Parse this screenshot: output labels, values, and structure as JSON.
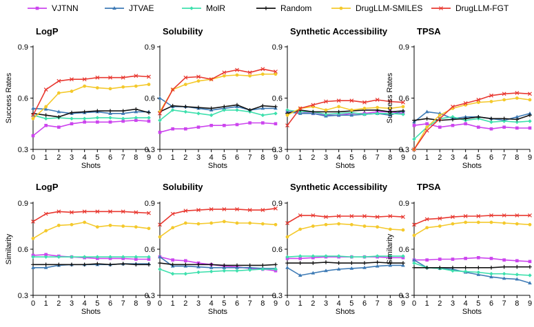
{
  "legend": [
    {
      "name": "VJTNN",
      "color": "#cc44ee",
      "marker": "square"
    },
    {
      "name": "JTVAE",
      "color": "#3d7ab5",
      "marker": "triangle"
    },
    {
      "name": "MolR",
      "color": "#3ee0ad",
      "marker": "diamond"
    },
    {
      "name": "Random",
      "color": "#111111",
      "marker": "plus"
    },
    {
      "name": "DrugLLM-SMILES",
      "color": "#f4c92c",
      "marker": "circle"
    },
    {
      "name": "DrugLLM-FGT",
      "color": "#e8372f",
      "marker": "x"
    }
  ],
  "chart_data": [
    {
      "type": "line",
      "title": "LogP",
      "xlabel": "Shots",
      "ylabel": "Success Rates",
      "x": [
        0,
        1,
        2,
        3,
        4,
        5,
        6,
        7,
        8,
        9
      ],
      "ylim": [
        0.3,
        0.9
      ],
      "yticks": [
        "0.3",
        "0.6",
        "0.9"
      ],
      "series": [
        {
          "name": "VJTNN",
          "values": [
            0.38,
            0.44,
            0.43,
            0.45,
            0.46,
            0.46,
            0.46,
            0.465,
            0.47,
            0.465
          ]
        },
        {
          "name": "JTVAE",
          "values": [
            0.54,
            0.535,
            0.52,
            0.51,
            0.515,
            0.52,
            0.51,
            0.51,
            0.52,
            0.52
          ]
        },
        {
          "name": "MolR",
          "values": [
            0.5,
            0.48,
            0.485,
            0.48,
            0.48,
            0.485,
            0.485,
            0.48,
            0.485,
            0.485
          ]
        },
        {
          "name": "Random",
          "values": [
            0.51,
            0.5,
            0.49,
            0.515,
            0.52,
            0.525,
            0.525,
            0.525,
            0.535,
            0.515
          ]
        },
        {
          "name": "DrugLLM-SMILES",
          "values": [
            0.48,
            0.55,
            0.63,
            0.64,
            0.67,
            0.66,
            0.655,
            0.665,
            0.67,
            0.68
          ]
        },
        {
          "name": "DrugLLM-FGT",
          "values": [
            0.5,
            0.65,
            0.7,
            0.71,
            0.71,
            0.72,
            0.72,
            0.72,
            0.73,
            0.725
          ]
        }
      ]
    },
    {
      "type": "line",
      "title": "Solubility",
      "xlabel": "Shots",
      "ylabel": "",
      "x": [
        0,
        1,
        2,
        3,
        4,
        5,
        6,
        7,
        8,
        9
      ],
      "ylim": [
        0.3,
        0.9
      ],
      "yticks": [
        "0.3",
        "0.6",
        "0.9"
      ],
      "series": [
        {
          "name": "VJTNN",
          "values": [
            0.4,
            0.42,
            0.42,
            0.43,
            0.44,
            0.44,
            0.445,
            0.455,
            0.455,
            0.45
          ]
        },
        {
          "name": "JTVAE",
          "values": [
            0.6,
            0.55,
            0.55,
            0.54,
            0.53,
            0.54,
            0.55,
            0.53,
            0.54,
            0.54
          ]
        },
        {
          "name": "MolR",
          "values": [
            0.47,
            0.53,
            0.52,
            0.51,
            0.5,
            0.53,
            0.53,
            0.52,
            0.5,
            0.51
          ]
        },
        {
          "name": "Random",
          "values": [
            0.52,
            0.555,
            0.55,
            0.545,
            0.54,
            0.55,
            0.56,
            0.53,
            0.555,
            0.55
          ]
        },
        {
          "name": "DrugLLM-SMILES",
          "values": [
            0.52,
            0.65,
            0.68,
            0.7,
            0.71,
            0.73,
            0.735,
            0.73,
            0.74,
            0.74
          ]
        },
        {
          "name": "DrugLLM-FGT",
          "values": [
            0.51,
            0.65,
            0.72,
            0.725,
            0.71,
            0.75,
            0.765,
            0.75,
            0.77,
            0.755
          ]
        }
      ]
    },
    {
      "type": "line",
      "title": "Synthetic Accessibility",
      "xlabel": "Shots",
      "ylabel": "",
      "x": [
        0,
        1,
        2,
        3,
        4,
        5,
        6,
        7,
        8,
        9
      ],
      "ylim": [
        0.3,
        0.9
      ],
      "yticks": [
        "0.3",
        "0.6",
        "0.9"
      ],
      "series": [
        {
          "name": "VJTNN",
          "values": [
            0.52,
            0.52,
            0.51,
            0.5,
            0.5,
            0.51,
            0.51,
            0.52,
            0.52,
            0.51
          ]
        },
        {
          "name": "JTVAE",
          "values": [
            0.52,
            0.51,
            0.51,
            0.495,
            0.5,
            0.5,
            0.505,
            0.51,
            0.5,
            0.525
          ]
        },
        {
          "name": "MolR",
          "values": [
            0.53,
            0.52,
            0.52,
            0.505,
            0.51,
            0.515,
            0.505,
            0.51,
            0.51,
            0.505
          ]
        },
        {
          "name": "Random",
          "values": [
            0.51,
            0.53,
            0.52,
            0.52,
            0.52,
            0.525,
            0.53,
            0.53,
            0.52,
            0.525
          ]
        },
        {
          "name": "DrugLLM-SMILES",
          "values": [
            0.5,
            0.54,
            0.55,
            0.53,
            0.55,
            0.53,
            0.54,
            0.545,
            0.54,
            0.55
          ]
        },
        {
          "name": "DrugLLM-FGT",
          "values": [
            0.44,
            0.54,
            0.56,
            0.58,
            0.585,
            0.585,
            0.575,
            0.59,
            0.58,
            0.575
          ]
        }
      ]
    },
    {
      "type": "line",
      "title": "TPSA",
      "xlabel": "Shots",
      "ylabel": "Success Rates",
      "x": [
        0,
        1,
        2,
        3,
        4,
        5,
        6,
        7,
        8,
        9
      ],
      "ylim": [
        0.3,
        0.9
      ],
      "yticks": [
        "0.3",
        "0.6",
        "0.9"
      ],
      "series": [
        {
          "name": "VJTNN",
          "values": [
            0.44,
            0.45,
            0.43,
            0.44,
            0.45,
            0.43,
            0.42,
            0.43,
            0.425,
            0.425
          ]
        },
        {
          "name": "JTVAE",
          "values": [
            0.46,
            0.52,
            0.51,
            0.48,
            0.49,
            0.49,
            0.48,
            0.47,
            0.49,
            0.51
          ]
        },
        {
          "name": "MolR",
          "values": [
            0.36,
            0.43,
            0.48,
            0.49,
            0.47,
            0.48,
            0.46,
            0.465,
            0.46,
            0.465
          ]
        },
        {
          "name": "Random",
          "values": [
            0.47,
            0.48,
            0.47,
            0.475,
            0.48,
            0.49,
            0.48,
            0.48,
            0.475,
            0.5
          ]
        },
        {
          "name": "DrugLLM-SMILES",
          "values": [
            0.3,
            0.43,
            0.5,
            0.54,
            0.56,
            0.575,
            0.58,
            0.59,
            0.6,
            0.59
          ]
        },
        {
          "name": "DrugLLM-FGT",
          "values": [
            0.3,
            0.41,
            0.48,
            0.55,
            0.57,
            0.59,
            0.615,
            0.625,
            0.63,
            0.625
          ]
        }
      ]
    },
    {
      "type": "line",
      "title": "LogP",
      "xlabel": "Shots",
      "ylabel": "Similarity",
      "x": [
        0,
        1,
        2,
        3,
        4,
        5,
        6,
        7,
        8,
        9
      ],
      "ylim": [
        0.3,
        0.9
      ],
      "yticks": [
        "0.3",
        "0.6",
        "0.9"
      ],
      "series": [
        {
          "name": "VJTNN",
          "values": [
            0.56,
            0.565,
            0.555,
            0.55,
            0.545,
            0.54,
            0.54,
            0.54,
            0.535,
            0.535
          ]
        },
        {
          "name": "JTVAE",
          "values": [
            0.48,
            0.48,
            0.495,
            0.5,
            0.5,
            0.5,
            0.5,
            0.505,
            0.505,
            0.505
          ]
        },
        {
          "name": "MolR",
          "values": [
            0.55,
            0.55,
            0.55,
            0.55,
            0.55,
            0.55,
            0.55,
            0.55,
            0.55,
            0.55
          ]
        },
        {
          "name": "Random",
          "values": [
            0.5,
            0.5,
            0.5,
            0.5,
            0.5,
            0.505,
            0.5,
            0.505,
            0.5,
            0.5
          ]
        },
        {
          "name": "DrugLLM-SMILES",
          "values": [
            0.67,
            0.72,
            0.755,
            0.76,
            0.775,
            0.745,
            0.755,
            0.75,
            0.745,
            0.735
          ]
        },
        {
          "name": "DrugLLM-FGT",
          "values": [
            0.78,
            0.83,
            0.845,
            0.84,
            0.845,
            0.845,
            0.845,
            0.845,
            0.84,
            0.835
          ]
        }
      ]
    },
    {
      "type": "line",
      "title": "Solubility",
      "xlabel": "Shots",
      "ylabel": "",
      "x": [
        0,
        1,
        2,
        3,
        4,
        5,
        6,
        7,
        8,
        9
      ],
      "ylim": [
        0.3,
        0.9
      ],
      "yticks": [
        "0.3",
        "0.6",
        "0.9"
      ],
      "series": [
        {
          "name": "VJTNN",
          "values": [
            0.55,
            0.53,
            0.525,
            0.51,
            0.5,
            0.49,
            0.485,
            0.475,
            0.47,
            0.46
          ]
        },
        {
          "name": "JTVAE",
          "values": [
            0.55,
            0.49,
            0.49,
            0.485,
            0.48,
            0.48,
            0.48,
            0.48,
            0.475,
            0.475
          ]
        },
        {
          "name": "MolR",
          "values": [
            0.47,
            0.44,
            0.44,
            0.45,
            0.455,
            0.46,
            0.46,
            0.465,
            0.47,
            0.47
          ]
        },
        {
          "name": "Random",
          "values": [
            0.51,
            0.5,
            0.5,
            0.5,
            0.5,
            0.495,
            0.495,
            0.495,
            0.495,
            0.5
          ]
        },
        {
          "name": "DrugLLM-SMILES",
          "values": [
            0.68,
            0.74,
            0.77,
            0.765,
            0.77,
            0.78,
            0.77,
            0.77,
            0.765,
            0.76
          ]
        },
        {
          "name": "DrugLLM-FGT",
          "values": [
            0.76,
            0.83,
            0.85,
            0.855,
            0.86,
            0.86,
            0.86,
            0.855,
            0.855,
            0.865
          ]
        }
      ]
    },
    {
      "type": "line",
      "title": "Synthetic Accessibility",
      "xlabel": "Shots",
      "ylabel": "",
      "x": [
        0,
        1,
        2,
        3,
        4,
        5,
        6,
        7,
        8,
        9
      ],
      "ylim": [
        0.3,
        0.9
      ],
      "yticks": [
        "0.3",
        "0.6",
        "0.9"
      ],
      "series": [
        {
          "name": "VJTNN",
          "values": [
            0.54,
            0.54,
            0.545,
            0.55,
            0.55,
            0.55,
            0.55,
            0.55,
            0.545,
            0.545
          ]
        },
        {
          "name": "JTVAE",
          "values": [
            0.48,
            0.43,
            0.445,
            0.46,
            0.47,
            0.475,
            0.48,
            0.49,
            0.495,
            0.495
          ]
        },
        {
          "name": "MolR",
          "values": [
            0.55,
            0.555,
            0.555,
            0.555,
            0.555,
            0.55,
            0.55,
            0.555,
            0.555,
            0.555
          ]
        },
        {
          "name": "Random",
          "values": [
            0.51,
            0.51,
            0.51,
            0.515,
            0.51,
            0.51,
            0.51,
            0.515,
            0.51,
            0.51
          ]
        },
        {
          "name": "DrugLLM-SMILES",
          "values": [
            0.68,
            0.73,
            0.75,
            0.76,
            0.765,
            0.76,
            0.75,
            0.745,
            0.73,
            0.725
          ]
        },
        {
          "name": "DrugLLM-FGT",
          "values": [
            0.77,
            0.82,
            0.82,
            0.81,
            0.815,
            0.815,
            0.815,
            0.81,
            0.815,
            0.81
          ]
        }
      ]
    },
    {
      "type": "line",
      "title": "TPSA",
      "xlabel": "Shots",
      "ylabel": "Similarity",
      "x": [
        0,
        1,
        2,
        3,
        4,
        5,
        6,
        7,
        8,
        9
      ],
      "ylim": [
        0.3,
        0.9
      ],
      "yticks": [
        "0.3",
        "0.6",
        "0.9"
      ],
      "series": [
        {
          "name": "VJTNN",
          "values": [
            0.53,
            0.53,
            0.535,
            0.535,
            0.54,
            0.545,
            0.54,
            0.53,
            0.525,
            0.52
          ]
        },
        {
          "name": "JTVAE",
          "values": [
            0.53,
            0.48,
            0.475,
            0.47,
            0.45,
            0.435,
            0.42,
            0.41,
            0.405,
            0.38
          ]
        },
        {
          "name": "MolR",
          "values": [
            0.51,
            0.48,
            0.475,
            0.46,
            0.455,
            0.45,
            0.44,
            0.44,
            0.435,
            0.43
          ]
        },
        {
          "name": "Random",
          "values": [
            0.48,
            0.48,
            0.48,
            0.48,
            0.48,
            0.48,
            0.48,
            0.485,
            0.485,
            0.485
          ]
        },
        {
          "name": "DrugLLM-SMILES",
          "values": [
            0.69,
            0.74,
            0.75,
            0.765,
            0.775,
            0.775,
            0.775,
            0.77,
            0.765,
            0.76
          ]
        },
        {
          "name": "DrugLLM-FGT",
          "values": [
            0.76,
            0.795,
            0.8,
            0.81,
            0.815,
            0.815,
            0.82,
            0.82,
            0.82,
            0.82
          ]
        }
      ]
    }
  ]
}
